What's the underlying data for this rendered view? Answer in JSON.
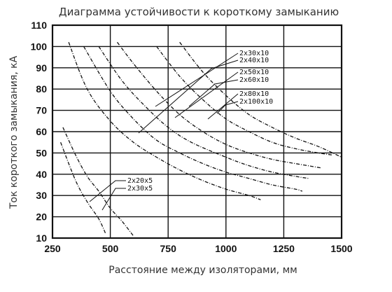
{
  "chart_data": {
    "type": "line",
    "title": "Диаграмма устойчивости к короткому замыканию",
    "xlabel": "Расстояние между изоляторами, мм",
    "ylabel": "Ток короткого замыкания, кА",
    "xlim": [
      250,
      1500
    ],
    "ylim": [
      10,
      110
    ],
    "xticks": [
      250,
      500,
      750,
      1000,
      1250,
      1500
    ],
    "xtick_labels": [
      "250",
      "500",
      "750",
      "1000",
      "1250",
      "1500"
    ],
    "yticks": [
      10,
      20,
      30,
      40,
      50,
      60,
      70,
      80,
      90,
      100,
      110
    ],
    "ytick_labels": [
      "10",
      "20",
      "30",
      "40",
      "50",
      "60",
      "70",
      "80",
      "90",
      "100",
      "110"
    ],
    "grid": true,
    "series": [
      {
        "name": "2x20x5",
        "x": [
          285,
          350,
          400,
          450,
          480
        ],
        "y": [
          55,
          37,
          27,
          19,
          12
        ]
      },
      {
        "name": "2x30x5",
        "x": [
          295,
          350,
          400,
          450,
          500,
          550,
          600
        ],
        "y": [
          62,
          49,
          39,
          32,
          24,
          18,
          11
        ]
      },
      {
        "name": "2x30x10",
        "x": [
          320,
          400,
          500,
          600,
          700,
          800,
          900,
          1000,
          1100,
          1150
        ],
        "y": [
          102,
          80,
          65,
          55,
          48,
          42,
          37,
          33,
          30,
          28
        ]
      },
      {
        "name": "2x40x10",
        "x": [
          385,
          500,
          600,
          700,
          800,
          900,
          1000,
          1100,
          1200,
          1300,
          1330
        ],
        "y": [
          100,
          79,
          66,
          56,
          50,
          45,
          41,
          38,
          35,
          33,
          32
        ]
      },
      {
        "name": "2x50x10",
        "x": [
          450,
          550,
          650,
          750,
          850,
          1000,
          1100,
          1200,
          1300,
          1360
        ],
        "y": [
          100,
          84,
          72,
          62,
          55,
          48,
          44,
          41,
          39,
          38
        ]
      },
      {
        "name": "2x60x10",
        "x": [
          530,
          600,
          700,
          800,
          900,
          1000,
          1100,
          1200,
          1300,
          1410
        ],
        "y": [
          102,
          92,
          79,
          68,
          60,
          54,
          50,
          47,
          45,
          43
        ]
      },
      {
        "name": "2x80x10",
        "x": [
          700,
          800,
          900,
          1000,
          1100,
          1200,
          1300,
          1400,
          1460
        ],
        "y": [
          100,
          86,
          75,
          66,
          60,
          55,
          52,
          50,
          49
        ]
      },
      {
        "name": "2x100x10",
        "x": [
          800,
          900,
          1000,
          1100,
          1200,
          1300,
          1400,
          1500
        ],
        "y": [
          102,
          88,
          77,
          68,
          62,
          57,
          53,
          48
        ]
      }
    ],
    "annotations": [
      {
        "text": "2x30x10",
        "target": "2x30x10"
      },
      {
        "text": "2x40x10",
        "target": "2x40x10"
      },
      {
        "text": "2x50x10",
        "target": "2x50x10"
      },
      {
        "text": "2x60x10",
        "target": "2x60x10"
      },
      {
        "text": "2x80x10",
        "target": "2x80x10"
      },
      {
        "text": "2x100x10",
        "target": "2x100x10"
      },
      {
        "text": "2x20x5",
        "target": "2x20x5"
      },
      {
        "text": "2x30x5",
        "target": "2x30x5"
      }
    ]
  }
}
